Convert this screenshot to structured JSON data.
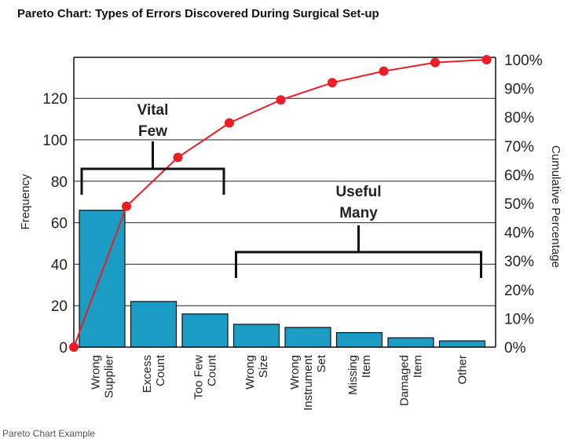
{
  "chart_data": {
    "type": "bar",
    "title": "Pareto Chart: Types of Errors Discovered During Surgical Set-up",
    "ylabel": "Frequency",
    "y2label": "Cumulative Percentage",
    "ylim": [
      0,
      140
    ],
    "y_ticks": [
      "0",
      "20",
      "40",
      "60",
      "80",
      "100",
      "120"
    ],
    "y2_ticks": [
      "0%",
      "10%",
      "20%",
      "30%",
      "40%",
      "50%",
      "60%",
      "70%",
      "80%",
      "90%",
      "100%"
    ],
    "categories": [
      [
        "Wrong",
        "Supplier"
      ],
      [
        "Excess",
        "Count"
      ],
      [
        "Too Few",
        "Count"
      ],
      [
        "Wrong",
        "Size"
      ],
      [
        "Wrong",
        "Instrument",
        "Set"
      ],
      [
        "Missing",
        "Item"
      ],
      [
        "Damaged",
        "Item"
      ],
      [
        "Other"
      ]
    ],
    "values": [
      66,
      22,
      16,
      11,
      9.5,
      7,
      4.5,
      3
    ],
    "cumulative_percent": [
      0,
      49,
      66,
      78,
      86,
      92,
      96,
      99,
      100
    ],
    "bar_color": "#1a9cc4",
    "line_color": "#ee1c24",
    "grid": true,
    "annotations": [
      {
        "lines": [
          "Vital",
          "Few"
        ],
        "from_category": 0,
        "to_category": 2
      },
      {
        "lines": [
          "Useful",
          "Many"
        ],
        "from_category": 3,
        "to_category": 7
      }
    ]
  },
  "caption": "Pareto Chart Example"
}
